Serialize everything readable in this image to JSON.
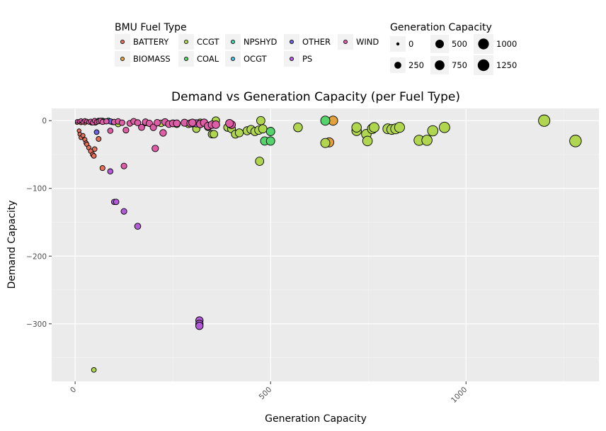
{
  "chart_data": {
    "type": "scatter",
    "title": "Demand vs Generation Capacity (per Fuel Type)",
    "xlabel": "Generation Capacity",
    "ylabel": "Demand Capacity",
    "xlim": [
      -60,
      1340
    ],
    "ylim": [
      -385,
      18
    ],
    "x_ticks": [
      0,
      500,
      1000
    ],
    "y_ticks": [
      0,
      -100,
      -200,
      -300
    ],
    "legend_placement": "top",
    "grid": true,
    "background": "#ebebeb",
    "fill_legend": {
      "title": "BMU Fuel Type",
      "items": [
        {
          "name": "BATTERY",
          "color": "#e2705a"
        },
        {
          "name": "BIOMASS",
          "color": "#e3a03c"
        },
        {
          "name": "CCGT",
          "color": "#b0d64f"
        },
        {
          "name": "COAL",
          "color": "#55d46c"
        },
        {
          "name": "NPSHYD",
          "color": "#3fd3ad"
        },
        {
          "name": "OCGT",
          "color": "#4cbbe0"
        },
        {
          "name": "OTHER",
          "color": "#6b63d8"
        },
        {
          "name": "PS",
          "color": "#b25ad8"
        },
        {
          "name": "WIND",
          "color": "#dd5ea6"
        }
      ]
    },
    "size_legend": {
      "title": "Generation Capacity",
      "items": [
        {
          "label": "0",
          "value": 0
        },
        {
          "label": "250",
          "value": 250
        },
        {
          "label": "500",
          "value": 500
        },
        {
          "label": "750",
          "value": 750
        },
        {
          "label": "1000",
          "value": 1000
        },
        {
          "label": "1250",
          "value": 1250
        }
      ]
    },
    "series": [
      {
        "name": "BATTERY",
        "points": [
          [
            10,
            -15
          ],
          [
            12,
            -20
          ],
          [
            15,
            -25
          ],
          [
            20,
            -22
          ],
          [
            25,
            -28
          ],
          [
            28,
            -33
          ],
          [
            30,
            -35
          ],
          [
            35,
            -40
          ],
          [
            40,
            -45
          ],
          [
            45,
            -50
          ],
          [
            48,
            -52
          ],
          [
            50,
            -42
          ],
          [
            60,
            -27
          ],
          [
            70,
            -70
          ],
          [
            5,
            -3
          ],
          [
            15,
            -3
          ],
          [
            25,
            -3
          ],
          [
            35,
            -2
          ],
          [
            42,
            -3
          ],
          [
            52,
            -3
          ]
        ]
      },
      {
        "name": "BIOMASS",
        "points": [
          [
            650,
            -32
          ],
          [
            660,
            0
          ]
        ]
      },
      {
        "name": "CCGT",
        "points": [
          [
            48,
            -368
          ],
          [
            100,
            -2
          ],
          [
            110,
            -5
          ],
          [
            180,
            -3
          ],
          [
            220,
            -4
          ],
          [
            260,
            -5
          ],
          [
            290,
            -5
          ],
          [
            310,
            -12
          ],
          [
            320,
            -3
          ],
          [
            340,
            -9
          ],
          [
            350,
            -20
          ],
          [
            355,
            -20
          ],
          [
            360,
            0
          ],
          [
            390,
            -10
          ],
          [
            400,
            -12
          ],
          [
            410,
            -20
          ],
          [
            420,
            -18
          ],
          [
            440,
            -15
          ],
          [
            450,
            -13
          ],
          [
            460,
            -16
          ],
          [
            470,
            -14
          ],
          [
            472,
            -60
          ],
          [
            475,
            0
          ],
          [
            480,
            -12
          ],
          [
            570,
            -10
          ],
          [
            640,
            -33
          ],
          [
            720,
            -15
          ],
          [
            720,
            -10
          ],
          [
            745,
            -20
          ],
          [
            748,
            -30
          ],
          [
            760,
            -12
          ],
          [
            765,
            -10
          ],
          [
            800,
            -12
          ],
          [
            810,
            -13
          ],
          [
            820,
            -12
          ],
          [
            830,
            -10
          ],
          [
            880,
            -29
          ],
          [
            900,
            -29
          ],
          [
            915,
            -15
          ],
          [
            945,
            -10
          ],
          [
            1200,
            0
          ],
          [
            1280,
            -30
          ]
        ]
      },
      {
        "name": "COAL",
        "points": [
          [
            485,
            -30
          ],
          [
            500,
            -30
          ],
          [
            500,
            -16
          ],
          [
            640,
            0
          ]
        ]
      },
      {
        "name": "NPSHYD",
        "points": [
          [
            70,
            0
          ],
          [
            80,
            -1
          ],
          [
            85,
            0
          ],
          [
            95,
            -2
          ]
        ]
      },
      {
        "name": "OCGT",
        "points": [
          [
            60,
            0
          ],
          [
            75,
            -1
          ]
        ]
      },
      {
        "name": "OTHER",
        "points": [
          [
            55,
            -17
          ],
          [
            90,
            -1
          ]
        ]
      },
      {
        "name": "PS",
        "points": [
          [
            90,
            -75
          ],
          [
            100,
            -120
          ],
          [
            105,
            -120
          ],
          [
            125,
            -134
          ],
          [
            160,
            -156
          ],
          [
            318,
            -295
          ],
          [
            318,
            -300
          ],
          [
            318,
            -303
          ],
          [
            300,
            -4
          ],
          [
            310,
            -4
          ]
        ]
      },
      {
        "name": "WIND",
        "points": [
          [
            5,
            -1
          ],
          [
            10,
            -1
          ],
          [
            15,
            0
          ],
          [
            20,
            -2
          ],
          [
            25,
            0
          ],
          [
            30,
            -1
          ],
          [
            35,
            -2
          ],
          [
            40,
            -1
          ],
          [
            45,
            -3
          ],
          [
            50,
            0
          ],
          [
            55,
            -2
          ],
          [
            60,
            -1
          ],
          [
            65,
            0
          ],
          [
            70,
            -2
          ],
          [
            80,
            -1
          ],
          [
            90,
            -15
          ],
          [
            100,
            -2
          ],
          [
            110,
            -1
          ],
          [
            120,
            -3
          ],
          [
            125,
            -67
          ],
          [
            130,
            -14
          ],
          [
            140,
            -4
          ],
          [
            150,
            -1
          ],
          [
            160,
            -3
          ],
          [
            170,
            -10
          ],
          [
            180,
            -2
          ],
          [
            190,
            -4
          ],
          [
            200,
            -10
          ],
          [
            205,
            -41
          ],
          [
            210,
            -3
          ],
          [
            225,
            -18
          ],
          [
            230,
            -2
          ],
          [
            240,
            -5
          ],
          [
            250,
            -4
          ],
          [
            260,
            -4
          ],
          [
            280,
            -3
          ],
          [
            295,
            -4
          ],
          [
            300,
            -3
          ],
          [
            320,
            -5
          ],
          [
            330,
            -3
          ],
          [
            340,
            -8
          ],
          [
            350,
            -6
          ],
          [
            360,
            -6
          ],
          [
            400,
            -6
          ],
          [
            395,
            -4
          ]
        ]
      }
    ]
  }
}
